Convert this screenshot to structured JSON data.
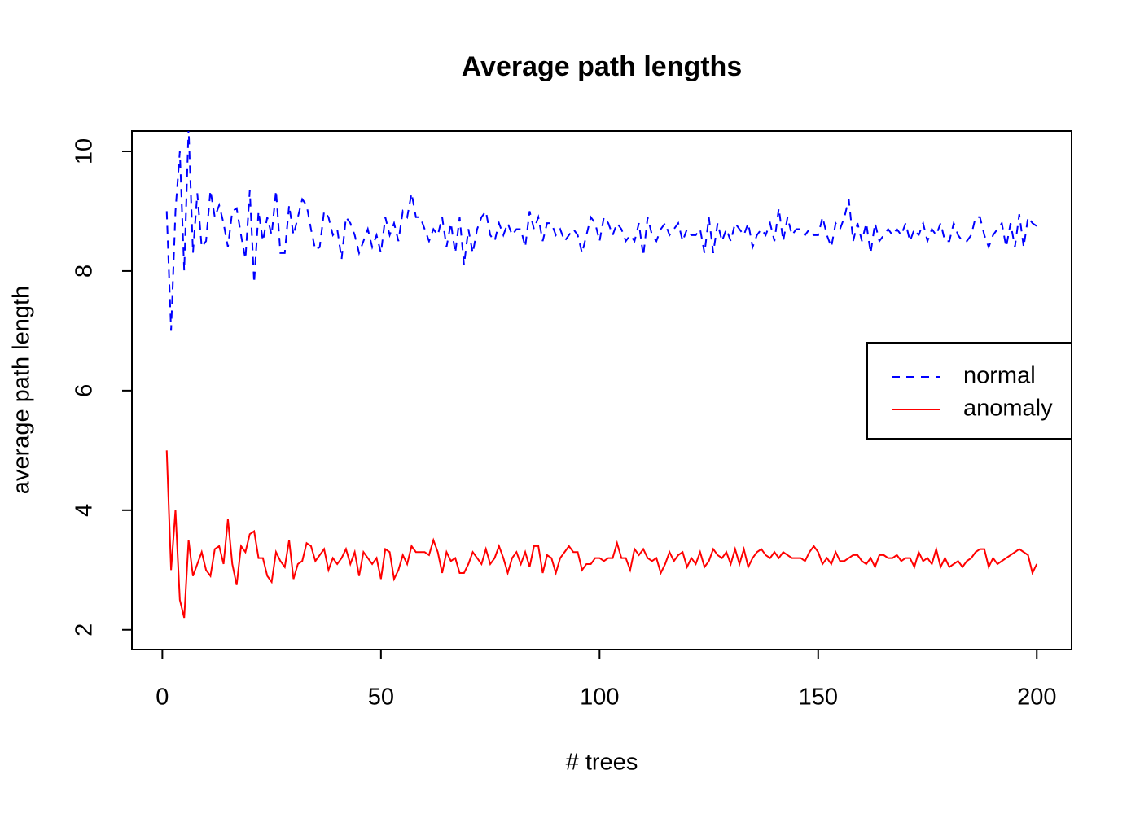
{
  "chart_data": {
    "type": "line",
    "title": "Average path lengths",
    "x_label": "# trees",
    "y_label": "average path length",
    "x": [
      1,
      2,
      3,
      4,
      5,
      6,
      7,
      8,
      9,
      10,
      11,
      12,
      13,
      14,
      15,
      16,
      17,
      18,
      19,
      20,
      21,
      22,
      23,
      24,
      25,
      26,
      27,
      28,
      29,
      30,
      31,
      32,
      33,
      34,
      35,
      36,
      37,
      38,
      39,
      40,
      41,
      42,
      43,
      44,
      45,
      46,
      47,
      48,
      49,
      50,
      51,
      52,
      53,
      54,
      55,
      56,
      57,
      58,
      59,
      60,
      61,
      62,
      63,
      64,
      65,
      66,
      67,
      68,
      69,
      70,
      71,
      72,
      73,
      74,
      75,
      76,
      77,
      78,
      79,
      80,
      81,
      82,
      83,
      84,
      85,
      86,
      87,
      88,
      89,
      90,
      91,
      92,
      93,
      94,
      95,
      96,
      97,
      98,
      99,
      100,
      101,
      102,
      103,
      104,
      105,
      106,
      107,
      108,
      109,
      110,
      111,
      112,
      113,
      114,
      115,
      116,
      117,
      118,
      119,
      120,
      121,
      122,
      123,
      124,
      125,
      126,
      127,
      128,
      129,
      130,
      131,
      132,
      133,
      134,
      135,
      136,
      137,
      138,
      139,
      140,
      141,
      142,
      143,
      144,
      145,
      146,
      147,
      148,
      149,
      150,
      151,
      152,
      153,
      154,
      155,
      156,
      157,
      158,
      159,
      160,
      161,
      162,
      163,
      164,
      165,
      166,
      167,
      168,
      169,
      170,
      171,
      172,
      173,
      174,
      175,
      176,
      177,
      178,
      179,
      180,
      181,
      182,
      183,
      184,
      185,
      186,
      187,
      188,
      189,
      190,
      191,
      192,
      193,
      194,
      195,
      196,
      197,
      198,
      199,
      200
    ],
    "series": [
      {
        "name": "normal",
        "color": "#0000ff",
        "linestyle": "dashed",
        "values": [
          9.0,
          7.0,
          9.0,
          10.0,
          8.0,
          10.4,
          8.3,
          9.3,
          8.4,
          8.5,
          9.35,
          8.9,
          9.1,
          8.8,
          8.4,
          9.0,
          9.05,
          8.6,
          8.2,
          9.35,
          7.8,
          9.0,
          8.5,
          8.9,
          8.6,
          9.35,
          8.3,
          8.3,
          9.1,
          8.6,
          8.9,
          9.2,
          9.1,
          8.7,
          8.35,
          8.4,
          9.0,
          8.9,
          8.6,
          8.7,
          8.2,
          8.9,
          8.8,
          8.6,
          8.3,
          8.5,
          8.7,
          8.4,
          8.6,
          8.3,
          8.9,
          8.6,
          8.8,
          8.5,
          9.0,
          8.9,
          9.3,
          8.9,
          8.9,
          8.7,
          8.5,
          8.7,
          8.6,
          8.9,
          8.4,
          8.8,
          8.3,
          8.9,
          8.1,
          8.7,
          8.3,
          8.7,
          8.9,
          9.0,
          8.6,
          8.5,
          8.8,
          8.6,
          8.8,
          8.6,
          8.7,
          8.7,
          8.4,
          9.0,
          8.7,
          8.9,
          8.5,
          8.8,
          8.8,
          8.6,
          8.7,
          8.5,
          8.6,
          8.7,
          8.6,
          8.3,
          8.6,
          8.9,
          8.8,
          8.5,
          8.9,
          8.8,
          8.6,
          8.8,
          8.7,
          8.5,
          8.6,
          8.5,
          8.8,
          8.25,
          8.9,
          8.6,
          8.5,
          8.7,
          8.8,
          8.6,
          8.7,
          8.8,
          8.5,
          8.7,
          8.6,
          8.6,
          8.7,
          8.3,
          8.9,
          8.3,
          8.8,
          8.5,
          8.7,
          8.5,
          8.8,
          8.7,
          8.6,
          8.8,
          8.4,
          8.6,
          8.7,
          8.6,
          8.8,
          8.5,
          9.05,
          8.5,
          8.9,
          8.6,
          8.7,
          8.7,
          8.6,
          8.7,
          8.6,
          8.6,
          8.9,
          8.6,
          8.4,
          8.8,
          8.7,
          8.9,
          9.2,
          8.5,
          8.8,
          8.5,
          8.8,
          8.3,
          8.8,
          8.5,
          8.6,
          8.7,
          8.6,
          8.7,
          8.6,
          8.8,
          8.5,
          8.7,
          8.6,
          8.8,
          8.5,
          8.7,
          8.6,
          8.8,
          8.5,
          8.5,
          8.8,
          8.6,
          8.5,
          8.5,
          8.6,
          8.9,
          8.9,
          8.6,
          8.4,
          8.6,
          8.7,
          8.8,
          8.4,
          8.8,
          8.4,
          8.95,
          8.4,
          8.9,
          8.8,
          8.75
        ]
      },
      {
        "name": "anomaly",
        "color": "#ff0000",
        "linestyle": "solid",
        "values": [
          5.0,
          3.0,
          4.0,
          2.5,
          2.2,
          3.5,
          2.9,
          3.1,
          3.3,
          3.0,
          2.9,
          3.35,
          3.4,
          3.1,
          3.85,
          3.1,
          2.75,
          3.4,
          3.3,
          3.6,
          3.65,
          3.2,
          3.2,
          2.9,
          2.8,
          3.3,
          3.15,
          3.05,
          3.5,
          2.85,
          3.1,
          3.15,
          3.45,
          3.4,
          3.15,
          3.25,
          3.35,
          3.0,
          3.2,
          3.1,
          3.2,
          3.35,
          3.1,
          3.3,
          2.9,
          3.3,
          3.2,
          3.1,
          3.2,
          2.85,
          3.35,
          3.3,
          2.85,
          3.0,
          3.25,
          3.1,
          3.4,
          3.3,
          3.3,
          3.3,
          3.25,
          3.5,
          3.3,
          2.95,
          3.3,
          3.15,
          3.2,
          2.95,
          2.95,
          3.1,
          3.3,
          3.2,
          3.1,
          3.35,
          3.1,
          3.2,
          3.4,
          3.2,
          2.95,
          3.2,
          3.3,
          3.1,
          3.3,
          3.05,
          3.4,
          3.4,
          2.95,
          3.25,
          3.2,
          2.95,
          3.2,
          3.3,
          3.4,
          3.3,
          3.3,
          3.0,
          3.1,
          3.1,
          3.2,
          3.2,
          3.15,
          3.2,
          3.2,
          3.45,
          3.2,
          3.2,
          3.0,
          3.35,
          3.25,
          3.35,
          3.2,
          3.15,
          3.2,
          2.95,
          3.1,
          3.3,
          3.15,
          3.25,
          3.3,
          3.05,
          3.2,
          3.1,
          3.3,
          3.05,
          3.15,
          3.35,
          3.25,
          3.2,
          3.3,
          3.1,
          3.35,
          3.1,
          3.35,
          3.05,
          3.2,
          3.3,
          3.35,
          3.25,
          3.2,
          3.3,
          3.2,
          3.3,
          3.25,
          3.2,
          3.2,
          3.2,
          3.15,
          3.3,
          3.4,
          3.3,
          3.1,
          3.2,
          3.1,
          3.3,
          3.15,
          3.15,
          3.2,
          3.25,
          3.25,
          3.15,
          3.1,
          3.2,
          3.05,
          3.25,
          3.25,
          3.2,
          3.2,
          3.25,
          3.15,
          3.2,
          3.2,
          3.05,
          3.3,
          3.15,
          3.2,
          3.1,
          3.35,
          3.05,
          3.2,
          3.05,
          3.1,
          3.15,
          3.05,
          3.15,
          3.2,
          3.3,
          3.35,
          3.35,
          3.05,
          3.2,
          3.1,
          3.15,
          3.2,
          3.25,
          3.3,
          3.35,
          3.3,
          3.25,
          2.95,
          3.1
        ]
      }
    ],
    "xlim": [
      -6.96,
      207.96
    ],
    "xticks": [
      0,
      50,
      100,
      150,
      200
    ],
    "ylim": [
      1.67,
      10.34
    ],
    "yticks": [
      2,
      4,
      6,
      8,
      10
    ],
    "legend": "right",
    "grid": false
  }
}
